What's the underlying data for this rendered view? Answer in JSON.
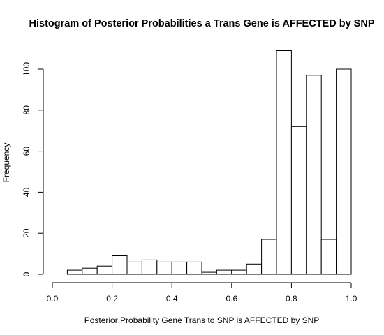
{
  "chart_data": {
    "type": "bar",
    "title": "Histogram of Posterior Probabilities a Trans Gene is AFFECTED by SNP",
    "xlabel": "Posterior Probability Gene Trans to SNP is AFFECTED by SNP",
    "ylabel": "Frequency",
    "bin_edges": [
      0.0,
      0.05,
      0.1,
      0.15,
      0.2,
      0.25,
      0.3,
      0.35,
      0.4,
      0.45,
      0.5,
      0.55,
      0.6,
      0.65,
      0.7,
      0.75,
      0.8,
      0.85,
      0.9,
      0.95,
      1.0
    ],
    "values": [
      0,
      2,
      3,
      4,
      9,
      6,
      7,
      6,
      6,
      6,
      1,
      2,
      2,
      5,
      17,
      109,
      72,
      97,
      17,
      100
    ],
    "xlim": [
      0.0,
      1.0
    ],
    "ylim": [
      0,
      110
    ],
    "x_ticks": [
      "0.0",
      "0.2",
      "0.4",
      "0.6",
      "0.8",
      "1.0"
    ],
    "y_ticks": [
      "0",
      "20",
      "40",
      "60",
      "80",
      "100"
    ],
    "grid": false
  }
}
